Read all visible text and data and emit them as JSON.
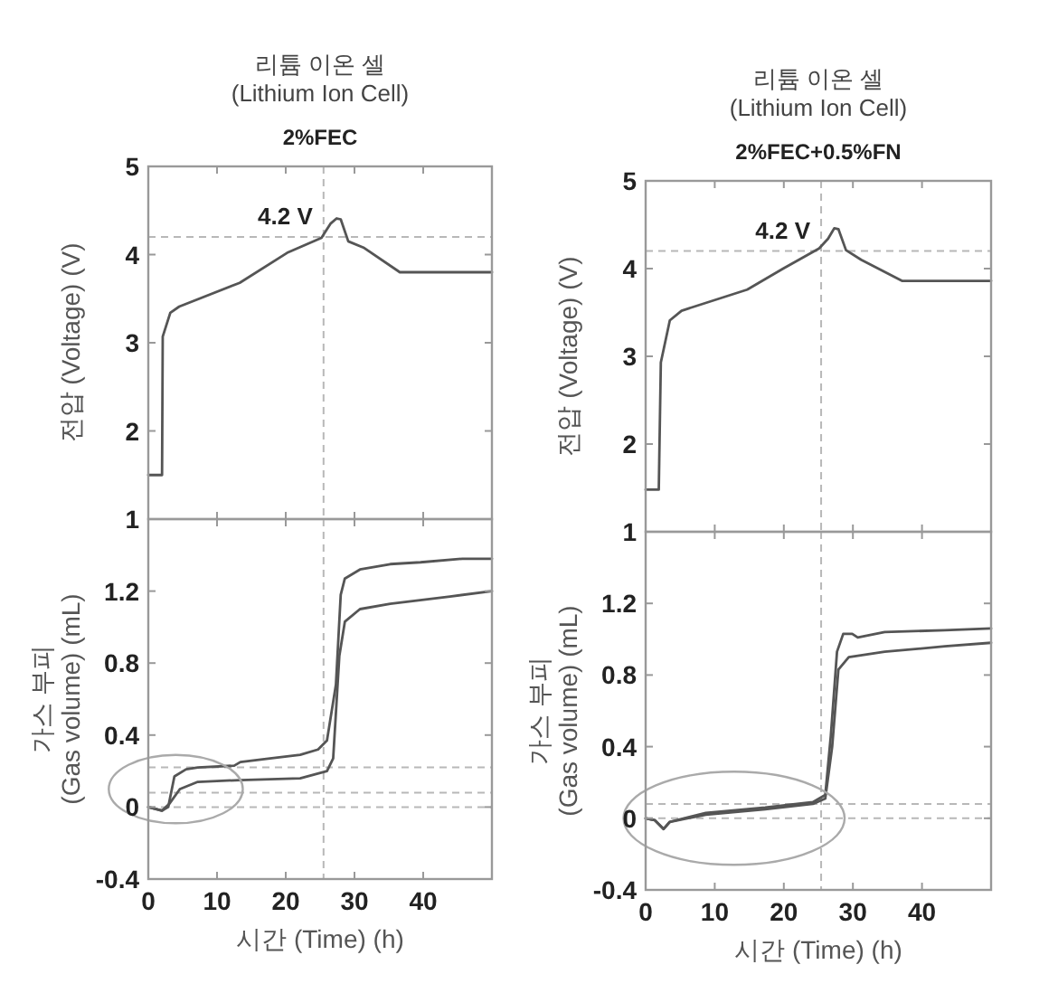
{
  "chart_data": [
    {
      "type": "line",
      "title": "리튬 이온 셀\n(Lithium Ion Cell)",
      "subtitle": "2%FEC",
      "ylabel": "전압 (Voltage) (V)",
      "xlim": [
        0,
        50
      ],
      "xticks": [
        0,
        10,
        20,
        30,
        40
      ],
      "ylim": [
        1,
        5
      ],
      "yticks": [
        1,
        2,
        3,
        4,
        5
      ],
      "tick_labels": "y",
      "grid": false,
      "ref_lines": [
        {
          "axis": "x",
          "value": 25.5,
          "color": "#b8b8b8",
          "line_style": "dashed"
        },
        {
          "axis": "y",
          "value": 4.2,
          "color": "#b8b8b8",
          "line_style": "dashed"
        }
      ],
      "annotations": [
        {
          "text": "4.2 V",
          "x": 25.5,
          "y": 4.2
        }
      ],
      "series": [
        {
          "color": "#555555",
          "x": [
            0,
            2.0,
            2.1,
            3.2,
            4.5,
            13.3,
            20.2,
            25.2,
            26.5,
            27.4,
            28,
            29.1,
            31.3,
            36.6,
            50
          ],
          "values": [
            1.5,
            1.5,
            3.07,
            3.34,
            3.41,
            3.68,
            4.02,
            4.19,
            4.35,
            4.41,
            4.4,
            4.15,
            4.08,
            3.8,
            3.8
          ]
        }
      ]
    },
    {
      "type": "line",
      "title": "리튬 이온 셀\n(Lithium Ion Cell)",
      "subtitle": "2%FEC+0.5%FN",
      "ylabel": "전압 (Voltage) (V)",
      "xlim": [
        0,
        50
      ],
      "xticks": [
        0,
        10,
        20,
        30,
        40
      ],
      "ylim": [
        1,
        5
      ],
      "yticks": [
        1,
        2,
        3,
        4,
        5
      ],
      "tick_labels": "y",
      "grid": false,
      "ref_lines": [
        {
          "axis": "x",
          "value": 25.4,
          "color": "#b8b8b8",
          "line_style": "dashed"
        },
        {
          "axis": "y",
          "value": 4.2,
          "color": "#b8b8b8",
          "line_style": "dashed"
        }
      ],
      "annotations": [
        {
          "text": "4.2 V",
          "x": 25.4,
          "y": 4.2
        }
      ],
      "series": [
        {
          "color": "#555555",
          "x": [
            0,
            1.9,
            2.2,
            3.5,
            5.2,
            14.7,
            19.9,
            25.1,
            26.4,
            27.3,
            27.9,
            29,
            31.2,
            37.1,
            50
          ],
          "values": [
            1.48,
            1.48,
            2.93,
            3.41,
            3.52,
            3.76,
            4.0,
            4.23,
            4.34,
            4.46,
            4.45,
            4.21,
            4.1,
            3.86,
            3.86
          ]
        }
      ]
    },
    {
      "type": "line",
      "xlabel": "시간 (Time) (h)",
      "ylabel": "가스 부피\n(Gas volume) (mL)",
      "xlim": [
        0,
        50
      ],
      "xticks": [
        0,
        10,
        20,
        30,
        40
      ],
      "ylim": [
        -0.4,
        1.6
      ],
      "yticks": [
        -0.4,
        0,
        0.4,
        0.8,
        1.2
      ],
      "grid": false,
      "ref_lines": [
        {
          "axis": "x",
          "value": 25.5,
          "color": "#b8b8b8",
          "line_style": "dashed"
        },
        {
          "axis": "y",
          "value": 0,
          "color": "#b8b8b8",
          "line_style": "dashed"
        },
        {
          "axis": "y",
          "value": 0.08,
          "color": "#b8b8b8",
          "line_style": "dashed"
        },
        {
          "axis": "y",
          "value": 0.22,
          "color": "#b8b8b8",
          "line_style": "dashed"
        }
      ],
      "series": [
        {
          "color": "#555555",
          "x": [
            0,
            2,
            2.9,
            3.8,
            5.5,
            7.2,
            12.5,
            13.4,
            17.7,
            22.1,
            24.7,
            26,
            27.3,
            28,
            28.6,
            30.8,
            35.2,
            39.6,
            45.7,
            50
          ],
          "values": [
            0,
            -0.02,
            0,
            0.17,
            0.21,
            0.22,
            0.23,
            0.25,
            0.27,
            0.29,
            0.32,
            0.37,
            0.68,
            1.18,
            1.27,
            1.32,
            1.35,
            1.36,
            1.38,
            1.38
          ]
        },
        {
          "color": "#555555",
          "x": [
            0,
            2,
            3.1,
            4.6,
            7.2,
            13.4,
            22.1,
            26,
            26.9,
            27.8,
            28.6,
            30.8,
            35.2,
            43.9,
            50
          ],
          "values": [
            0,
            -0.02,
            0.02,
            0.1,
            0.14,
            0.15,
            0.16,
            0.2,
            0.27,
            0.84,
            1.03,
            1.1,
            1.13,
            1.17,
            1.2
          ]
        }
      ]
    },
    {
      "type": "line",
      "xlabel": "시간 (Time) (h)",
      "ylabel": "가스 부피\n(Gas volume) (mL)",
      "xlim": [
        0,
        50
      ],
      "xticks": [
        0,
        10,
        20,
        30,
        40
      ],
      "ylim": [
        -0.4,
        1.6
      ],
      "yticks": [
        -0.4,
        0,
        0.4,
        0.8,
        1.2
      ],
      "grid": false,
      "ref_lines": [
        {
          "axis": "x",
          "value": 25.4,
          "color": "#b8b8b8",
          "line_style": "dashed"
        },
        {
          "axis": "y",
          "value": 0,
          "color": "#b8b8b8",
          "line_style": "dashed"
        },
        {
          "axis": "y",
          "value": 0.08,
          "color": "#b8b8b8",
          "line_style": "dashed"
        }
      ],
      "series": [
        {
          "color": "#555555",
          "x": [
            0,
            1.3,
            2.6,
            3.5,
            8.7,
            17.3,
            24.2,
            26,
            26.8,
            27.7,
            28.6,
            29.9,
            30.7,
            34.6,
            43.3,
            50
          ],
          "values": [
            0,
            -0.01,
            -0.06,
            -0.02,
            0.03,
            0.06,
            0.09,
            0.13,
            0.46,
            0.93,
            1.03,
            1.03,
            1.01,
            1.04,
            1.05,
            1.06
          ]
        },
        {
          "color": "#555555",
          "x": [
            0,
            1.3,
            2.6,
            3.5,
            8.7,
            17.3,
            24.2,
            26,
            27,
            27.9,
            29.4,
            34.6,
            43.3,
            50
          ],
          "values": [
            0,
            -0.01,
            -0.06,
            -0.02,
            0.02,
            0.05,
            0.08,
            0.11,
            0.4,
            0.83,
            0.9,
            0.93,
            0.96,
            0.98
          ]
        }
      ]
    }
  ]
}
